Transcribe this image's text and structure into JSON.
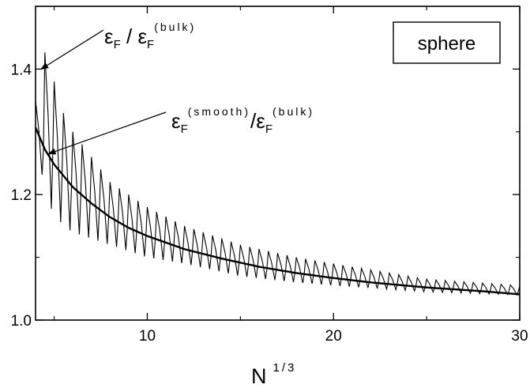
{
  "chart_data": {
    "type": "line",
    "xlabel": "N",
    "xlabel_superscript": "1/3",
    "ylabel": "",
    "xlim": [
      4,
      30
    ],
    "ylim": [
      1.0,
      1.5
    ],
    "x_ticks": [
      {
        "value": 10,
        "label": "10"
      },
      {
        "value": 20,
        "label": "20"
      },
      {
        "value": 30,
        "label": "30"
      }
    ],
    "y_ticks": [
      {
        "value": 1.0,
        "label": "1.0"
      },
      {
        "value": 1.2,
        "label": "1.2"
      },
      {
        "value": 1.4,
        "label": "1.4"
      }
    ],
    "legend_box": {
      "text": "sphere",
      "placement": "top-right"
    },
    "series": [
      {
        "key": "oscillating",
        "oscillation_period": 0.5,
        "envelope_x": [
          4.0,
          4.3,
          4.6,
          5.0,
          5.5,
          6.0,
          7.0,
          8.0,
          10.0,
          12.0,
          15.0,
          18.0,
          20.0,
          25.0,
          30.0
        ],
        "upper_envelope": [
          1.35,
          1.42,
          1.43,
          1.38,
          1.33,
          1.3,
          1.26,
          1.22,
          1.18,
          1.15,
          1.12,
          1.1,
          1.09,
          1.065,
          1.055
        ],
        "lower_envelope": [
          1.28,
          1.24,
          1.19,
          1.17,
          1.15,
          1.14,
          1.13,
          1.12,
          1.1,
          1.09,
          1.07,
          1.06,
          1.055,
          1.045,
          1.04
        ]
      },
      {
        "key": "smooth",
        "x": [
          4.0,
          4.5,
          5.0,
          6.0,
          7.0,
          8.0,
          9.0,
          10.0,
          12.0,
          14.0,
          16.0,
          18.0,
          20.0,
          22.0,
          25.0,
          28.0,
          30.0
        ],
        "y": [
          1.307,
          1.272,
          1.248,
          1.212,
          1.186,
          1.164,
          1.147,
          1.134,
          1.113,
          1.098,
          1.085,
          1.075,
          1.067,
          1.06,
          1.052,
          1.046,
          1.041
        ]
      }
    ],
    "annotations": [
      {
        "key": "oscillating_label",
        "parts": [
          {
            "t": "ε",
            "style": "main"
          },
          {
            "t": "F",
            "style": "sub"
          },
          {
            "t": " / ",
            "style": "main"
          },
          {
            "t": "ε",
            "style": "main"
          },
          {
            "t": "F",
            "style": "sub"
          },
          {
            "t": "(bulk)",
            "style": "sup"
          }
        ],
        "arrow_to": {
          "series": "oscillating",
          "x": 4.3,
          "y": 1.4
        }
      },
      {
        "key": "smooth_label",
        "parts": [
          {
            "t": "ε",
            "style": "main"
          },
          {
            "t": "F",
            "style": "sub"
          },
          {
            "t": "(smooth)",
            "style": "sup"
          },
          {
            "t": "/",
            "style": "main"
          },
          {
            "t": "ε",
            "style": "main"
          },
          {
            "t": "F",
            "style": "sub"
          },
          {
            "t": "(bulk)",
            "style": "sup"
          }
        ],
        "arrow_to": {
          "series": "smooth",
          "x": 4.7,
          "y": 1.265
        }
      }
    ]
  }
}
